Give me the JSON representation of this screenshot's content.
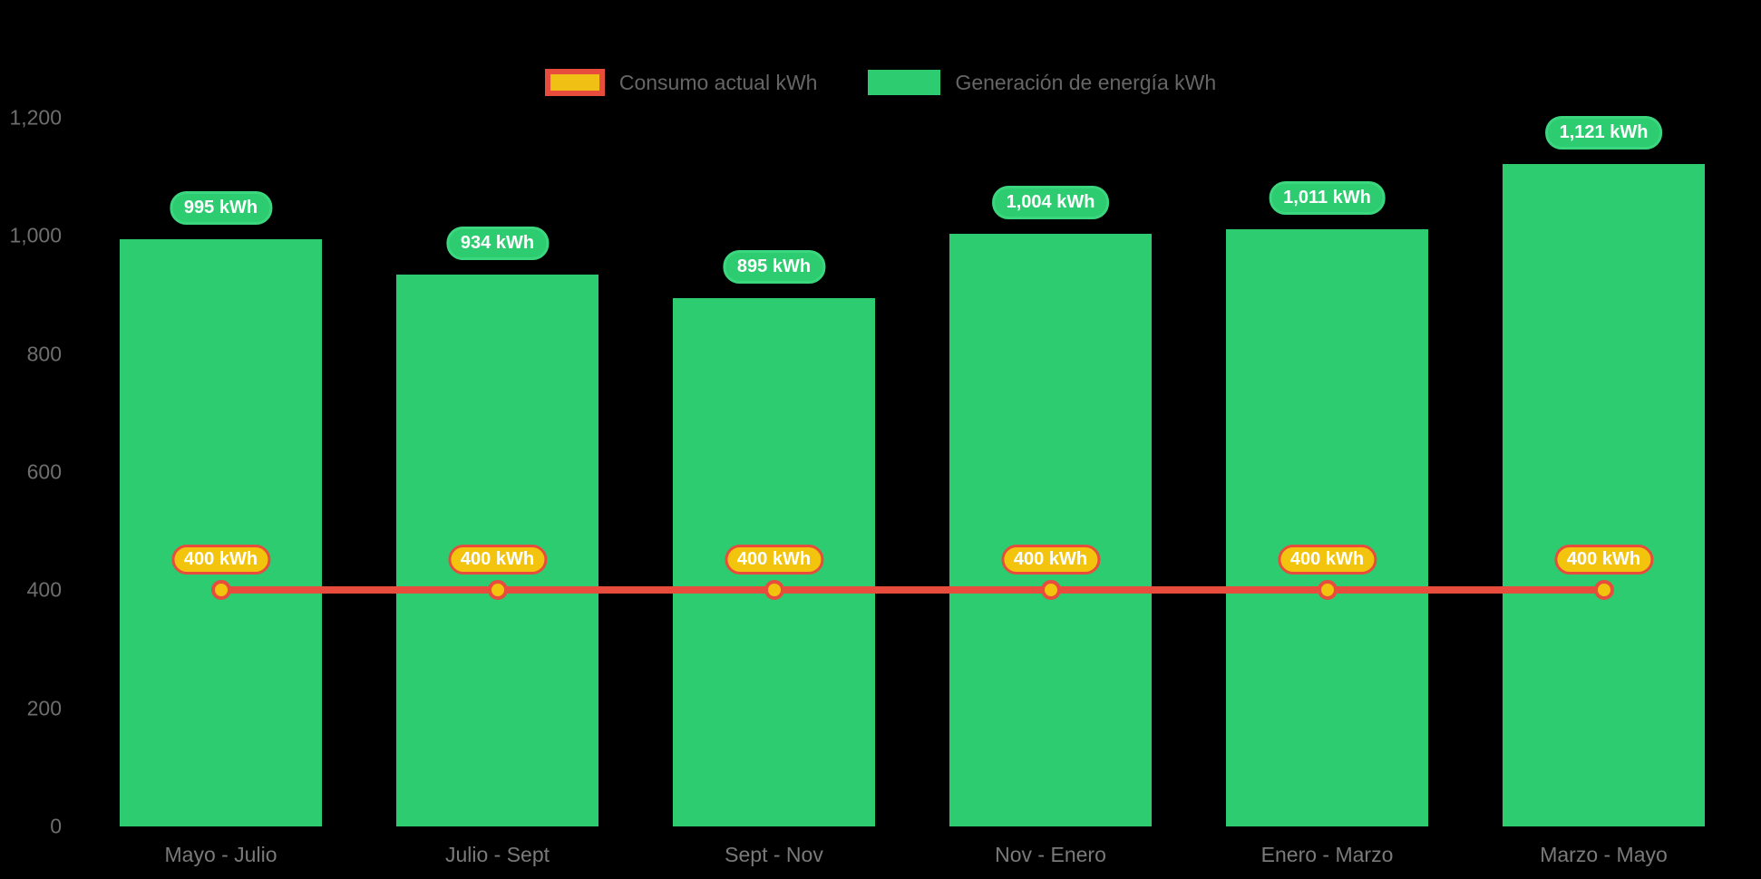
{
  "background_color": "#000000",
  "legend": {
    "position": "top-center",
    "items": [
      {
        "label": "Consumo actual kWh",
        "series_type": "line",
        "swatch_fill": "#f0c014",
        "swatch_border": "#e74c3c"
      },
      {
        "label": "Generación de energía kWh",
        "series_type": "bar",
        "swatch_fill": "#2ecc71"
      }
    ]
  },
  "chart_data": {
    "type": "bar",
    "subtype": "combo-bar-line",
    "title": "",
    "xlabel": "",
    "ylabel": "",
    "categories": [
      "Mayo - Julio",
      "Julio - Sept",
      "Sept - Nov",
      "Nov - Enero",
      "Enero - Marzo",
      "Marzo - Mayo"
    ],
    "series": [
      {
        "name": "Generación de energía kWh",
        "type": "bar",
        "color": "#2ecc71",
        "values": [
          995,
          934,
          895,
          1004,
          1011,
          1121
        ],
        "labels": [
          "995 kWh",
          "934 kWh",
          "895 kWh",
          "1,004 kWh",
          "1,011 kWh",
          "1,121 kWh"
        ]
      },
      {
        "name": "Consumo actual kWh",
        "type": "line",
        "color": "#e74c3c",
        "marker_fill": "#f2c40e",
        "marker_border": "#e74c3c",
        "values": [
          400,
          400,
          400,
          400,
          400,
          400
        ],
        "labels": [
          "400 kWh",
          "400 kWh",
          "400 kWh",
          "400 kWh",
          "400 kWh",
          "400 kWh"
        ]
      }
    ],
    "ylim": [
      0,
      1200
    ],
    "yticks_values": [
      0,
      200,
      400,
      600,
      800,
      1000,
      1200
    ],
    "yticks": [
      "0",
      "200",
      "400",
      "600",
      "800",
      "1,000",
      "1,200"
    ],
    "grid": false,
    "legend_position": "top-center"
  }
}
